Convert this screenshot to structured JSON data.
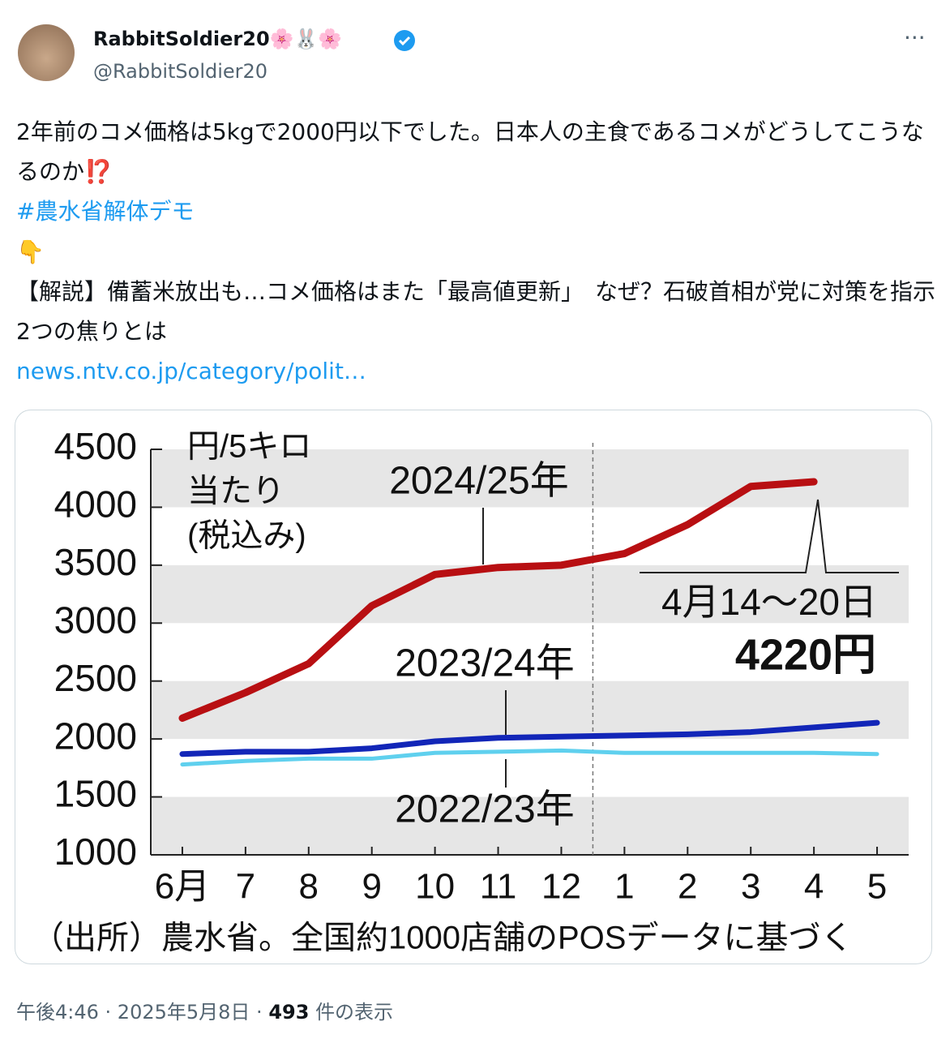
{
  "tweet": {
    "display_name": "RabbitSoldier20🌸🐰🌸",
    "handle": "@RabbitSoldier20",
    "text": "2年前のコメ価格は5kgで2000円以下でした。日本人の主食であるコメがどうしてこうなるのか⁉️",
    "hashtag": "#農水省解体デモ",
    "pointer": "👇",
    "article_title": "【解説】備蓄米放出も…コメ価格はまた「最高値更新」　なぜ？石破首相が党に対策を指示　2つの焦りとは",
    "link": "news.ntv.co.jp/category/polit…",
    "time": "午後4:46",
    "date": "2025年5月8日",
    "views": "493",
    "views_label": "件の表示"
  },
  "chart_data": {
    "type": "line",
    "y_axis_title": [
      "円/5キロ",
      "当たり",
      "(税込み)"
    ],
    "categories": [
      "6月",
      "7",
      "8",
      "9",
      "10",
      "11",
      "12",
      "1",
      "2",
      "3",
      "4",
      "5"
    ],
    "series": [
      {
        "name": "2024/25年",
        "color": "#b80f12",
        "values": [
          2180,
          2400,
          2650,
          3150,
          3420,
          3480,
          3500,
          3600,
          3850,
          4180,
          4220,
          null
        ]
      },
      {
        "name": "2023/24年",
        "color": "#1226b8",
        "values": [
          1870,
          1890,
          1890,
          1920,
          1980,
          2010,
          2020,
          2030,
          2040,
          2060,
          2100,
          2140
        ]
      },
      {
        "name": "2022/23年",
        "color": "#5fd0ee",
        "values": [
          1780,
          1810,
          1830,
          1830,
          1880,
          1890,
          1900,
          1880,
          1880,
          1880,
          1880,
          1870
        ]
      }
    ],
    "annotations": [
      "4月14～20日",
      "4220円"
    ],
    "ylim": [
      1000,
      4500
    ],
    "yticks": [
      1000,
      1500,
      2000,
      2500,
      3000,
      3500,
      4000,
      4500
    ],
    "banded_grid": true,
    "source": "（出所）農水省。全国約1000店舗のPOSデータに基づく"
  }
}
